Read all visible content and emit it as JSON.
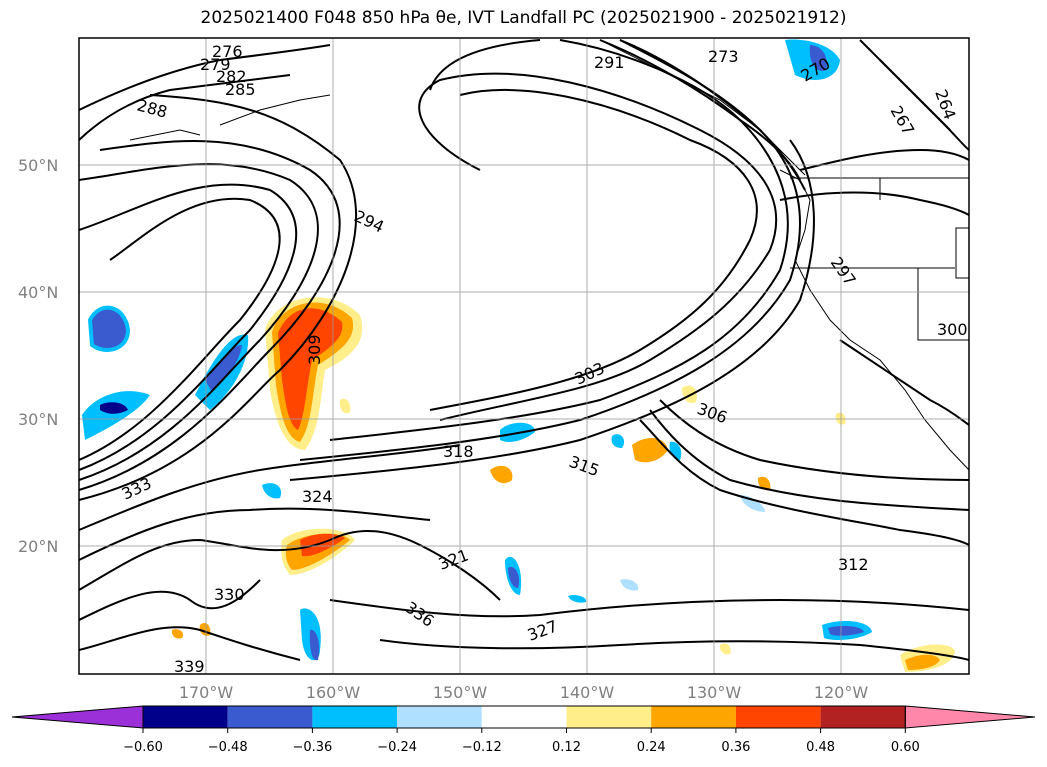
{
  "title": "2025021400 F048 850 hPa θe, IVT Landfall PC (2025021900 - 2025021912)",
  "lat_ticks": [
    "50°N",
    "40°N",
    "30°N",
    "20°N"
  ],
  "lon_ticks": [
    "170°W",
    "160°W",
    "150°W",
    "140°W",
    "130°W",
    "120°W"
  ],
  "contour_labels": [
    "276",
    "279",
    "282",
    "285",
    "288",
    "291",
    "294",
    "297",
    "300",
    "303",
    "306",
    "309",
    "312",
    "315",
    "318",
    "321",
    "324",
    "327",
    "330",
    "333",
    "336",
    "339",
    "270",
    "273",
    "264",
    "267"
  ],
  "colorbar": {
    "ticks": [
      "−0.60",
      "−0.48",
      "−0.36",
      "−0.24",
      "−0.12",
      "0.12",
      "0.24",
      "0.36",
      "0.48",
      "0.60"
    ],
    "colors": [
      "#9b30d9",
      "#00008b",
      "#3a5bd0",
      "#00bfff",
      "#b0e0ff",
      "#ffffff",
      "#ffee8a",
      "#ffa500",
      "#ff4500",
      "#b22222",
      "#ff88aa"
    ]
  }
}
